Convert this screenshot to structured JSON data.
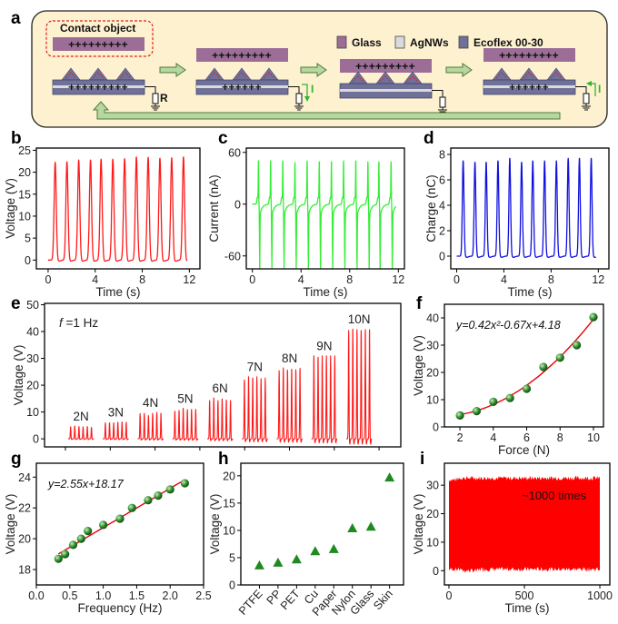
{
  "diagram": {
    "panel": "a",
    "contact_object_label": "Contact object",
    "legend": [
      {
        "label": "Glass",
        "color": "#9c6e97"
      },
      {
        "label": "AgNWs",
        "color": "#dadada"
      },
      {
        "label": "Ecoflex 00-30",
        "color": "#6f7199"
      }
    ],
    "background_color": "#fdf1d0",
    "arrow_color": "#b6d7a0",
    "arrow_outline_color": "#4e7a3a",
    "current_color": "#2fb52f",
    "induced_charge_color": "#e0202a",
    "positive_charges_full": "+++++++++",
    "positive_charges_partial": "++++++",
    "resistor_label": "R",
    "current_label": "I"
  },
  "chart_data": [
    {
      "panel": "b",
      "type": "line",
      "xlabel": "Time (s)",
      "ylabel": "Voltage (V)",
      "xlim": [
        -1,
        12.9
      ],
      "ylim": [
        -2,
        25.5
      ],
      "xticks": [
        0,
        4,
        8,
        12
      ],
      "yticks": [
        0,
        5,
        10,
        15,
        20,
        25
      ],
      "color": "#ff1a1a",
      "grid": false,
      "peak_times": [
        0.6,
        1.6,
        2.6,
        3.6,
        4.5,
        5.5,
        6.5,
        7.5,
        8.5,
        9.5,
        10.5,
        11.5
      ],
      "peak_values": [
        22.3,
        22.4,
        22.8,
        22.8,
        23.0,
        23.0,
        23.1,
        23.5,
        23.4,
        23.2,
        23.3,
        23.5
      ],
      "baseline": 0
    },
    {
      "panel": "c",
      "type": "line",
      "xlabel": "Time (s)",
      "ylabel": "Current (nA)",
      "xlim": [
        -0.5,
        12.5
      ],
      "ylim": [
        -75,
        65
      ],
      "xticks": [
        0,
        4,
        8,
        12
      ],
      "yticks": [
        -60,
        0,
        60
      ],
      "color": "#33ee33",
      "grid": false,
      "peak_times": [
        0.5,
        1.5,
        2.5,
        3.5,
        4.5,
        5.5,
        6.5,
        7.5,
        8.5,
        9.5,
        10.4,
        11.4
      ],
      "positive_peak_values": [
        48,
        48,
        48,
        46,
        48,
        47,
        47,
        48,
        48,
        47,
        47,
        47
      ],
      "negative_peak_values": [
        -62,
        -62,
        -62,
        -63,
        -64,
        -64,
        -65,
        -66,
        -65,
        -64,
        -65,
        -64
      ],
      "baseline": 0
    },
    {
      "panel": "d",
      "type": "line",
      "xlabel": "Time (s)",
      "ylabel": "Charge (nC)",
      "xlim": [
        -0.5,
        12.9
      ],
      "ylim": [
        -1,
        8.5
      ],
      "xticks": [
        0,
        4,
        8,
        12
      ],
      "yticks": [
        0,
        2,
        4,
        6,
        8
      ],
      "color": "#1010e0",
      "grid": false,
      "peak_times": [
        0.55,
        1.55,
        2.5,
        3.5,
        4.5,
        5.5,
        6.45,
        7.45,
        8.45,
        9.45,
        10.4,
        11.4
      ],
      "peak_values": [
        7.5,
        7.4,
        7.4,
        7.5,
        7.7,
        7.4,
        7.5,
        7.5,
        7.5,
        7.7,
        7.7,
        7.7
      ],
      "baseline": 0
    },
    {
      "panel": "e",
      "type": "line",
      "xlabel": "",
      "ylabel": "Voltage (V)",
      "xlim": [
        -1.05,
        9.2
      ],
      "ylim": [
        -3,
        50.5
      ],
      "yticks": [
        0,
        10,
        20,
        30,
        40,
        50
      ],
      "color": "#ff1a1a",
      "grid": false,
      "annotation": {
        "symbol": "f",
        "text": " =1 Hz"
      },
      "groups": [
        {
          "label": "2N",
          "peaks": [
            4.5,
            4.8,
            4.6,
            4.5,
            4.6,
            4.3
          ]
        },
        {
          "label": "3N",
          "peaks": [
            6.0,
            6.0,
            6.0,
            6.2,
            6.3,
            6.2
          ]
        },
        {
          "label": "4N",
          "peaks": [
            9.4,
            9.5,
            8.7,
            9.5,
            9.9,
            9.5
          ]
        },
        {
          "label": "5N",
          "peaks": [
            10.3,
            10.6,
            11.4,
            10.9,
            11.0,
            11.0
          ]
        },
        {
          "label": "6N",
          "peaks": [
            14.3,
            15.3,
            14.3,
            14.9,
            14.5,
            14.3
          ]
        },
        {
          "label": "7N",
          "peaks": [
            22.0,
            23.2,
            22.7,
            23.2,
            22.5,
            22.7
          ]
        },
        {
          "label": "8N",
          "peaks": [
            25.5,
            26.5,
            25.7,
            26.0,
            25.8,
            26.3
          ]
        },
        {
          "label": "9N",
          "peaks": [
            31.0,
            30.5,
            31.0,
            31.0,
            31.0,
            31.0
          ]
        },
        {
          "label": "10N",
          "peaks": [
            40.5,
            41.0,
            40.8,
            40.5,
            40.8,
            40.8
          ]
        }
      ]
    },
    {
      "panel": "f",
      "type": "scatter",
      "xlabel": "Force (N)",
      "ylabel": "Voltage (V)",
      "xlim": [
        1.07,
        10.6
      ],
      "ylim": [
        0,
        45
      ],
      "xticks": [
        2,
        4,
        6,
        8,
        10
      ],
      "yticks": [
        0,
        10,
        20,
        30,
        40
      ],
      "marker_color": "#2e8b2e",
      "fit_color": "#e8000b",
      "grid": false,
      "x": [
        2,
        3,
        4,
        5,
        6,
        7,
        8,
        9,
        10
      ],
      "y": [
        4.2,
        5.8,
        9.2,
        10.6,
        14.0,
        22.0,
        25.4,
        30.0,
        40.3
      ],
      "fit": {
        "kind": "quadratic",
        "coefficients": [
          0.42,
          -0.67,
          4.18
        ],
        "equation": "y=0.42x²-0.67x+4.18"
      }
    },
    {
      "panel": "g",
      "type": "scatter",
      "xlabel": "Frequency (Hz)",
      "ylabel": "Voltage (V)",
      "xlim": [
        0,
        2.5
      ],
      "ylim": [
        17,
        24.9
      ],
      "xticks": [
        0,
        0.5,
        1,
        1.5,
        2,
        2.5
      ],
      "xtick_labels": [
        "0.0",
        "0.5",
        "1.0",
        "1.5",
        "2.0",
        "2.5"
      ],
      "yticks": [
        18,
        20,
        22,
        24
      ],
      "marker_color": "#2e8b2e",
      "fit_color": "#e8000b",
      "grid": false,
      "x": [
        0.33,
        0.43,
        0.55,
        0.67,
        0.77,
        1.0,
        1.25,
        1.43,
        1.67,
        1.82,
        2.0,
        2.22
      ],
      "y": [
        18.7,
        19.0,
        19.6,
        20.0,
        20.5,
        20.9,
        21.3,
        22.0,
        22.5,
        22.8,
        23.2,
        23.6
      ],
      "fit": {
        "kind": "linear",
        "coefficients": [
          2.55,
          18.17
        ],
        "equation": "y=2.55x+18.17"
      }
    },
    {
      "panel": "h",
      "type": "scatter",
      "xlabel": "",
      "ylabel": "Voltage (V)",
      "xlim": [
        -1,
        7.75
      ],
      "ylim": [
        0,
        22.3
      ],
      "categories": [
        "PTFE",
        "PP",
        "PET",
        "Cu",
        "Paper",
        "Nylon",
        "Glass",
        "Skin"
      ],
      "values": [
        3.6,
        4.1,
        4.7,
        6.2,
        6.6,
        10.4,
        10.7,
        19.7
      ],
      "yticks": [
        0,
        5,
        10,
        15,
        20
      ],
      "marker": "triangle",
      "marker_color": "#1f8a1f",
      "grid": false
    },
    {
      "panel": "i",
      "type": "area",
      "xlabel": "Time (s)",
      "ylabel": "Voltage (V)",
      "xlim": [
        -30,
        1066
      ],
      "ylim": [
        -5,
        37.7
      ],
      "xticks": [
        0,
        500,
        1000
      ],
      "yticks": [
        0,
        10,
        20,
        30
      ],
      "color": "#ff0000",
      "grid": false,
      "time_range": [
        0,
        1000
      ],
      "upper_envelope": 32.5,
      "lower_envelope": 0.5,
      "annotation": "~1000 times"
    }
  ]
}
